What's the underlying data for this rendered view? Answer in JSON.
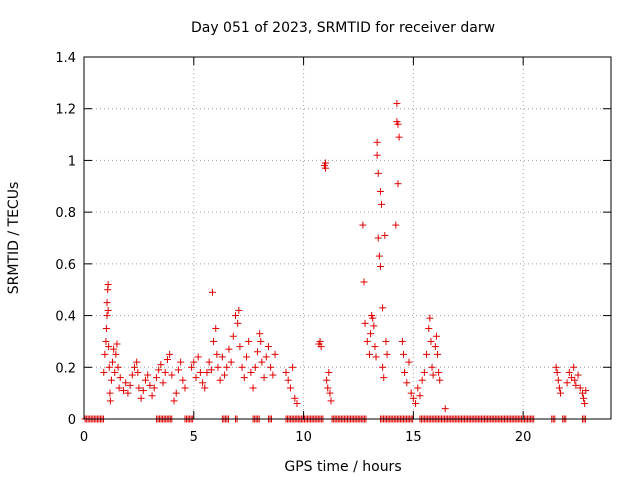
{
  "chart_data": {
    "type": "scatter",
    "title": "Day 051 of 2023, SRMTID for receiver darw",
    "xlabel": "GPS time / hours",
    "ylabel": "SRMTID / TECUs",
    "xlim": [
      0,
      24
    ],
    "ylim": [
      0,
      1.4
    ],
    "xticks": [
      0,
      5,
      10,
      15,
      20
    ],
    "xtick_labels": [
      "0",
      "5",
      "10",
      "15",
      "20"
    ],
    "yticks": [
      0,
      0.2,
      0.4,
      0.6,
      0.8,
      1,
      1.2,
      1.4
    ],
    "ytick_labels": [
      "0",
      "0.2",
      "0.4",
      "0.6",
      "0.8",
      "1",
      "1.2",
      "1.4"
    ],
    "grid": true,
    "marker": "+",
    "color": "#e00000",
    "series": [
      {
        "name": "SRMTID",
        "points": [
          [
            0.9,
            0.18
          ],
          [
            0.95,
            0.25
          ],
          [
            1.0,
            0.3
          ],
          [
            1.02,
            0.35
          ],
          [
            1.05,
            0.4
          ],
          [
            1.05,
            0.45
          ],
          [
            1.08,
            0.5
          ],
          [
            1.1,
            0.52
          ],
          [
            1.1,
            0.42
          ],
          [
            1.12,
            0.28
          ],
          [
            1.15,
            0.2
          ],
          [
            1.18,
            0.1
          ],
          [
            1.2,
            0.07
          ],
          [
            1.25,
            0.15
          ],
          [
            1.3,
            0.22
          ],
          [
            1.35,
            0.27
          ],
          [
            1.4,
            0.18
          ],
          [
            1.45,
            0.25
          ],
          [
            1.5,
            0.29
          ],
          [
            1.55,
            0.2
          ],
          [
            1.6,
            0.12
          ],
          [
            1.65,
            0.16
          ],
          [
            1.8,
            0.11
          ],
          [
            1.9,
            0.14
          ],
          [
            2.0,
            0.1
          ],
          [
            2.1,
            0.13
          ],
          [
            2.2,
            0.17
          ],
          [
            2.3,
            0.2
          ],
          [
            2.4,
            0.22
          ],
          [
            2.45,
            0.18
          ],
          [
            2.5,
            0.12
          ],
          [
            2.6,
            0.08
          ],
          [
            2.7,
            0.11
          ],
          [
            2.8,
            0.15
          ],
          [
            2.9,
            0.17
          ],
          [
            3.0,
            0.13
          ],
          [
            3.1,
            0.09
          ],
          [
            3.2,
            0.12
          ],
          [
            3.3,
            0.16
          ],
          [
            3.4,
            0.19
          ],
          [
            3.5,
            0.21
          ],
          [
            3.6,
            0.14
          ],
          [
            3.7,
            0.18
          ],
          [
            3.8,
            0.23
          ],
          [
            3.9,
            0.25
          ],
          [
            4.0,
            0.17
          ],
          [
            4.1,
            0.07
          ],
          [
            4.2,
            0.1
          ],
          [
            4.3,
            0.19
          ],
          [
            4.4,
            0.22
          ],
          [
            4.5,
            0.15
          ],
          [
            4.6,
            0.12
          ],
          [
            4.9,
            0.2
          ],
          [
            5.0,
            0.22
          ],
          [
            5.1,
            0.16
          ],
          [
            5.2,
            0.24
          ],
          [
            5.3,
            0.18
          ],
          [
            5.4,
            0.14
          ],
          [
            5.5,
            0.12
          ],
          [
            5.6,
            0.18
          ],
          [
            5.7,
            0.22
          ],
          [
            5.8,
            0.19
          ],
          [
            5.85,
            0.49
          ],
          [
            5.9,
            0.3
          ],
          [
            6.0,
            0.35
          ],
          [
            6.05,
            0.25
          ],
          [
            6.1,
            0.2
          ],
          [
            6.2,
            0.15
          ],
          [
            6.3,
            0.24
          ],
          [
            6.4,
            0.17
          ],
          [
            6.5,
            0.2
          ],
          [
            6.6,
            0.27
          ],
          [
            6.7,
            0.22
          ],
          [
            6.8,
            0.32
          ],
          [
            6.9,
            0.4
          ],
          [
            7.0,
            0.37
          ],
          [
            7.05,
            0.42
          ],
          [
            7.1,
            0.28
          ],
          [
            7.2,
            0.2
          ],
          [
            7.3,
            0.16
          ],
          [
            7.4,
            0.24
          ],
          [
            7.5,
            0.3
          ],
          [
            7.6,
            0.18
          ],
          [
            7.7,
            0.12
          ],
          [
            7.8,
            0.2
          ],
          [
            7.9,
            0.26
          ],
          [
            8.0,
            0.33
          ],
          [
            8.05,
            0.3
          ],
          [
            8.1,
            0.22
          ],
          [
            8.2,
            0.16
          ],
          [
            8.3,
            0.24
          ],
          [
            8.4,
            0.28
          ],
          [
            8.5,
            0.2
          ],
          [
            8.6,
            0.17
          ],
          [
            8.7,
            0.25
          ],
          [
            9.2,
            0.18
          ],
          [
            9.3,
            0.15
          ],
          [
            9.4,
            0.12
          ],
          [
            9.5,
            0.2
          ],
          [
            9.6,
            0.08
          ],
          [
            9.7,
            0.06
          ],
          [
            10.7,
            0.29
          ],
          [
            10.75,
            0.3
          ],
          [
            10.8,
            0.28
          ],
          [
            10.95,
            0.98
          ],
          [
            11.0,
            0.99
          ],
          [
            11.0,
            0.97
          ],
          [
            11.05,
            0.15
          ],
          [
            11.1,
            0.12
          ],
          [
            11.15,
            0.18
          ],
          [
            11.2,
            0.1
          ],
          [
            11.25,
            0.07
          ],
          [
            12.7,
            0.75
          ],
          [
            12.75,
            0.53
          ],
          [
            12.8,
            0.37
          ],
          [
            12.9,
            0.3
          ],
          [
            13.0,
            0.25
          ],
          [
            13.05,
            0.33
          ],
          [
            13.1,
            0.4
          ],
          [
            13.15,
            0.39
          ],
          [
            13.2,
            0.36
          ],
          [
            13.25,
            0.28
          ],
          [
            13.3,
            0.24
          ],
          [
            13.35,
            1.07
          ],
          [
            13.35,
            1.02
          ],
          [
            13.4,
            0.95
          ],
          [
            13.4,
            0.7
          ],
          [
            13.45,
            0.63
          ],
          [
            13.5,
            0.88
          ],
          [
            13.5,
            0.59
          ],
          [
            13.55,
            0.83
          ],
          [
            13.6,
            0.43
          ],
          [
            13.6,
            0.2
          ],
          [
            13.65,
            0.16
          ],
          [
            13.7,
            0.71
          ],
          [
            13.75,
            0.3
          ],
          [
            13.8,
            0.25
          ],
          [
            14.2,
            0.75
          ],
          [
            14.25,
            1.15
          ],
          [
            14.25,
            1.22
          ],
          [
            14.3,
            1.14
          ],
          [
            14.3,
            0.91
          ],
          [
            14.35,
            1.09
          ],
          [
            14.5,
            0.3
          ],
          [
            14.55,
            0.25
          ],
          [
            14.6,
            0.18
          ],
          [
            14.7,
            0.14
          ],
          [
            14.8,
            0.22
          ],
          [
            14.9,
            0.1
          ],
          [
            15.0,
            0.08
          ],
          [
            15.1,
            0.06
          ],
          [
            15.2,
            0.12
          ],
          [
            15.3,
            0.09
          ],
          [
            15.4,
            0.15
          ],
          [
            15.5,
            0.18
          ],
          [
            15.6,
            0.25
          ],
          [
            15.7,
            0.35
          ],
          [
            15.75,
            0.39
          ],
          [
            15.8,
            0.3
          ],
          [
            15.85,
            0.2
          ],
          [
            15.9,
            0.17
          ],
          [
            16.0,
            0.28
          ],
          [
            16.05,
            0.32
          ],
          [
            16.1,
            0.25
          ],
          [
            16.15,
            0.18
          ],
          [
            16.2,
            0.15
          ],
          [
            16.45,
            0.04
          ],
          [
            21.5,
            0.2
          ],
          [
            21.55,
            0.18
          ],
          [
            21.6,
            0.15
          ],
          [
            21.65,
            0.12
          ],
          [
            21.7,
            0.1
          ],
          [
            22.0,
            0.14
          ],
          [
            22.1,
            0.18
          ],
          [
            22.2,
            0.16
          ],
          [
            22.3,
            0.2
          ],
          [
            22.35,
            0.15
          ],
          [
            22.4,
            0.13
          ],
          [
            22.5,
            0.17
          ],
          [
            22.6,
            0.12
          ],
          [
            22.7,
            0.1
          ],
          [
            22.75,
            0.08
          ],
          [
            22.8,
            0.06
          ],
          [
            22.85,
            0.11
          ]
        ],
        "zero_ranges": [
          [
            0.05,
            0.9
          ],
          [
            3.3,
            4.0
          ],
          [
            4.6,
            5.0
          ],
          [
            6.3,
            6.6
          ],
          [
            6.9,
            7.0
          ],
          [
            7.7,
            8.0
          ],
          [
            8.4,
            8.6
          ],
          [
            9.2,
            10.9
          ],
          [
            11.3,
            12.9
          ],
          [
            13.5,
            15.0
          ],
          [
            15.3,
            20.5
          ],
          [
            21.3,
            21.5
          ],
          [
            21.8,
            22.0
          ],
          [
            22.7,
            22.9
          ]
        ]
      }
    ]
  }
}
